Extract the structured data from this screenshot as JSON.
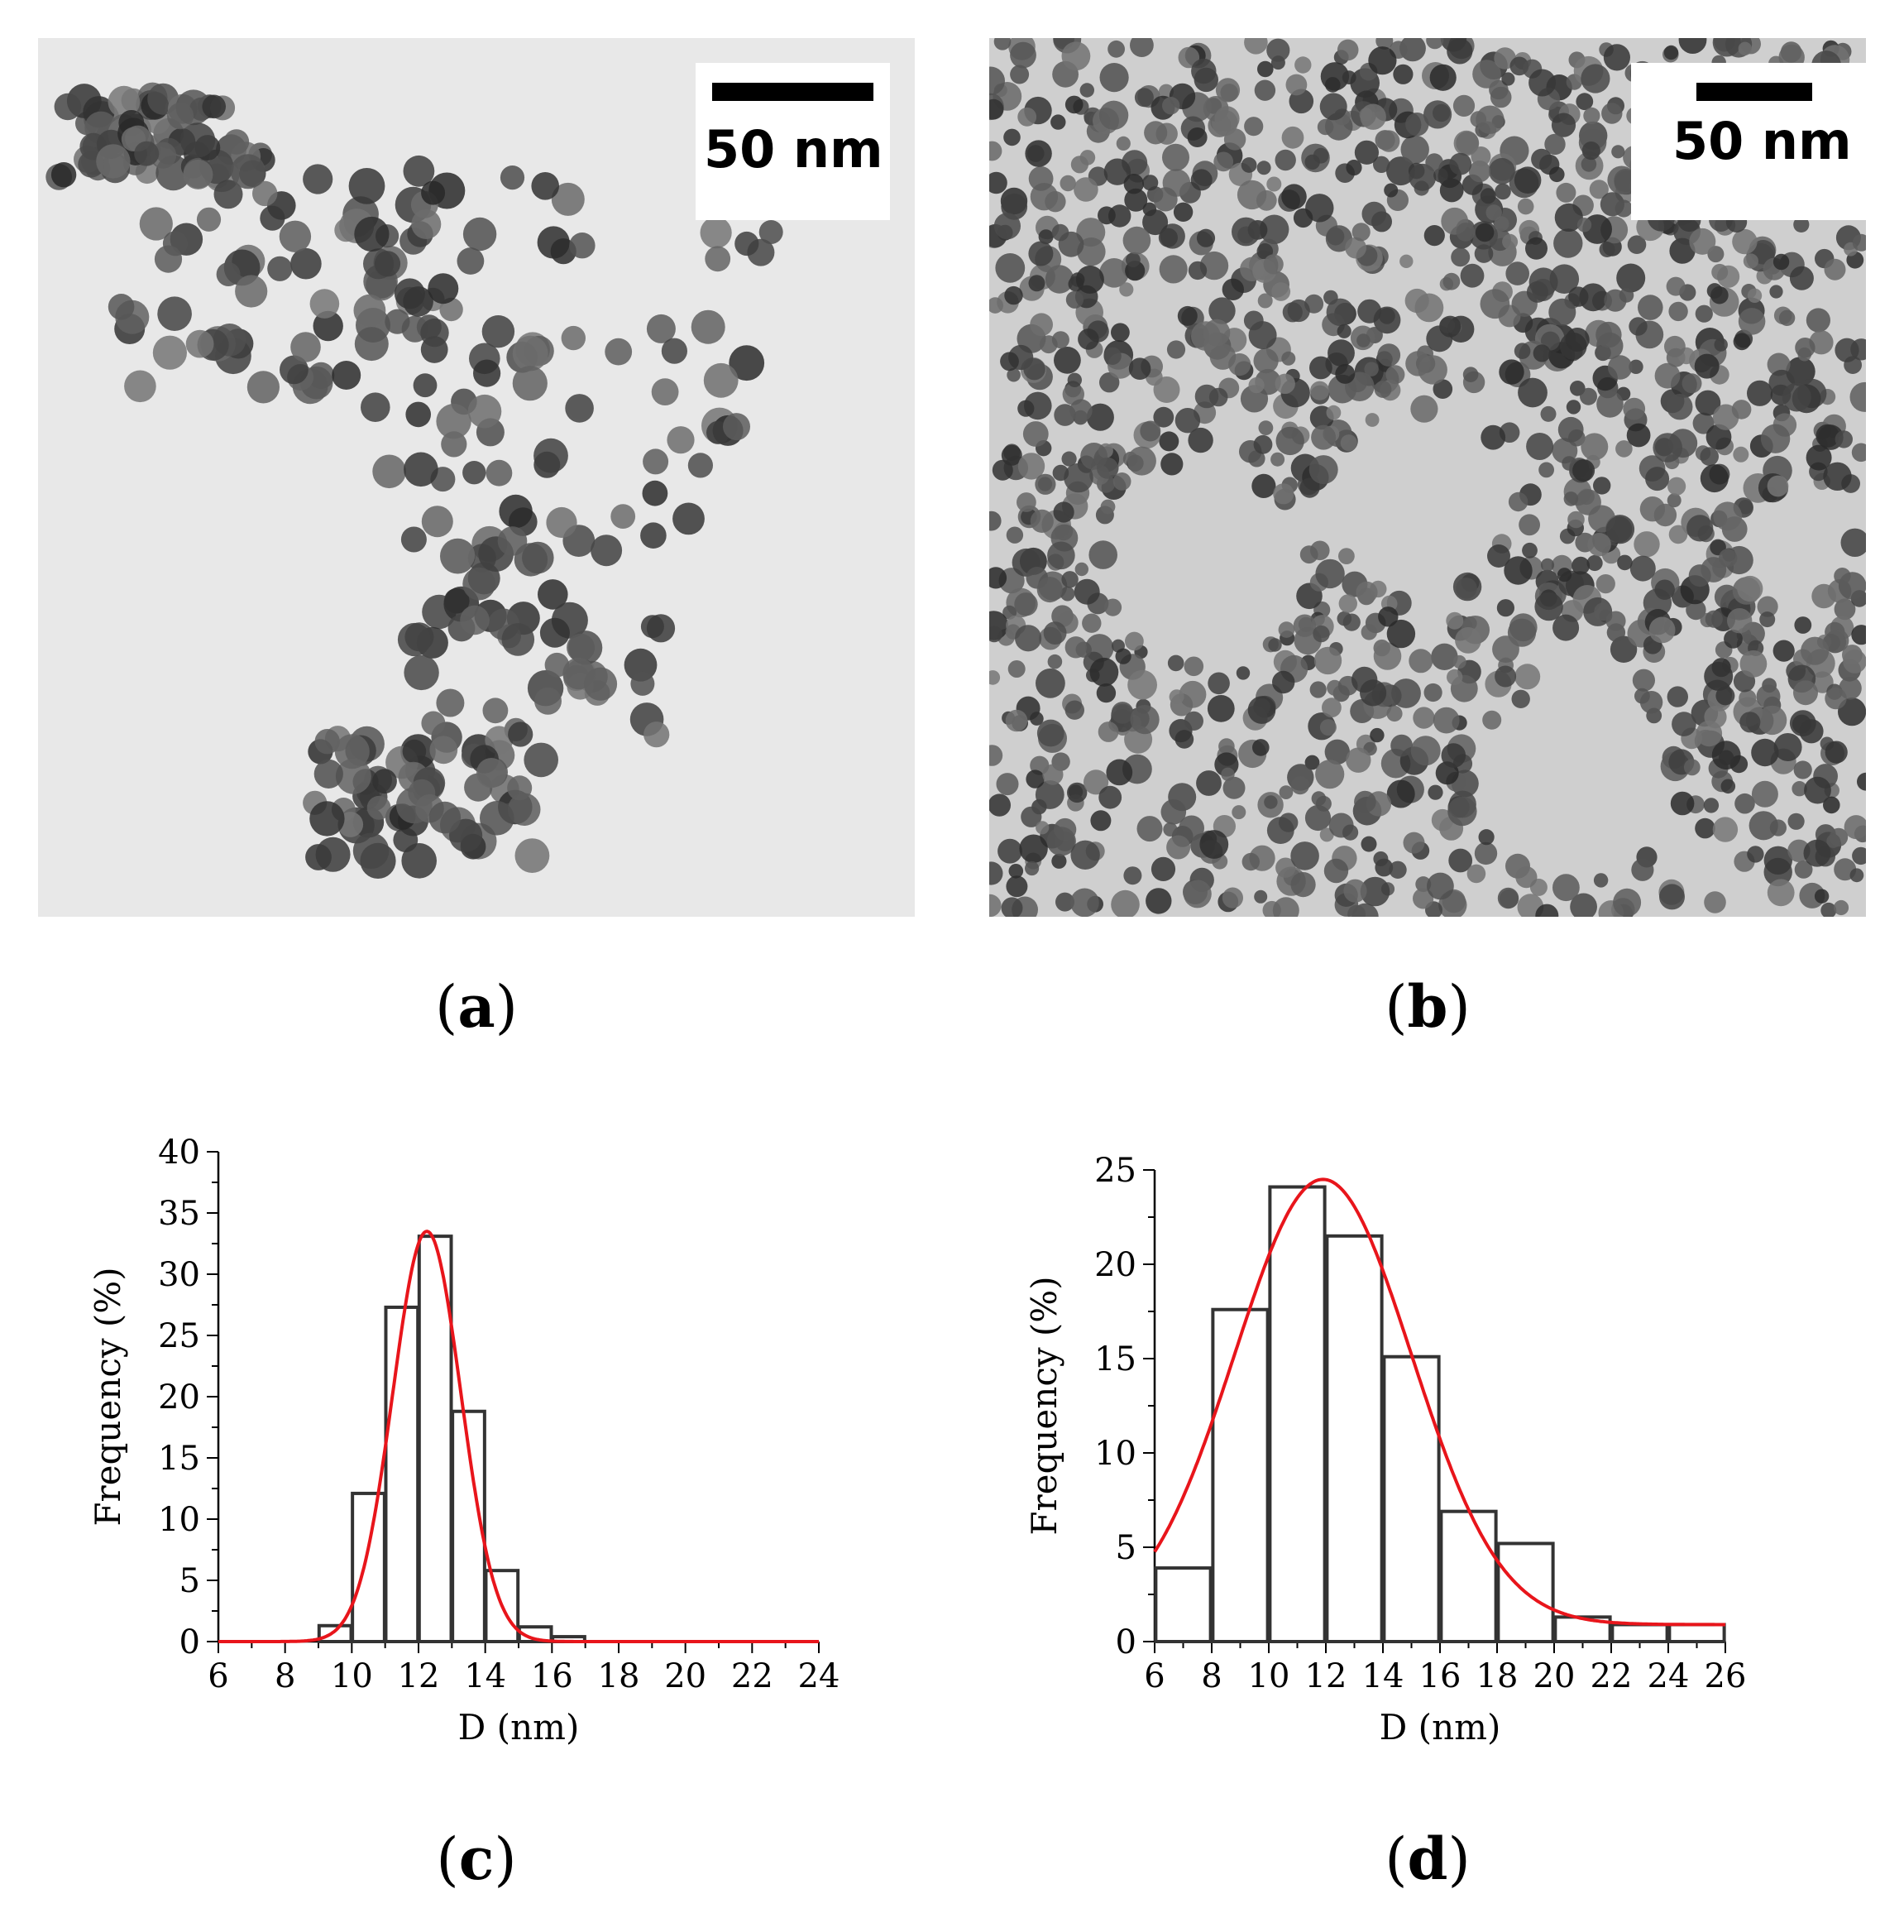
{
  "panels": {
    "a": {
      "label": "a",
      "scale_text": "50 nm"
    },
    "b": {
      "label": "b",
      "scale_text": "50 nm"
    },
    "c": {
      "label": "c"
    },
    "d": {
      "label": "d"
    }
  },
  "colors": {
    "bar_edge": "#333333",
    "fit_curve": "#e8151b"
  },
  "chart_data": [
    {
      "panel": "c",
      "type": "bar",
      "xlabel": "D (nm)",
      "ylabel": "Frequency (%)",
      "xlim": [
        6,
        24
      ],
      "ylim": [
        0,
        40
      ],
      "xticks": [
        6,
        8,
        10,
        12,
        14,
        16,
        18,
        20,
        22,
        24
      ],
      "yticks": [
        0,
        5,
        10,
        15,
        20,
        25,
        30,
        35,
        40
      ],
      "bin_width": 1,
      "bin_centers": [
        9.5,
        10.5,
        11.5,
        12.5,
        13.5,
        14.5,
        15.5,
        16.5
      ],
      "values": [
        1.3,
        12.1,
        27.3,
        33.1,
        18.8,
        5.8,
        1.2,
        0.4
      ],
      "fit": {
        "type": "gaussian",
        "center": 12.25,
        "sigma": 1.02,
        "amplitude": 33.5,
        "baseline": 0
      },
      "grid": false
    },
    {
      "panel": "d",
      "type": "bar",
      "xlabel": "D (nm)",
      "ylabel": "Frequency (%)",
      "xlim": [
        6,
        26
      ],
      "ylim": [
        0,
        25
      ],
      "xticks": [
        6,
        8,
        10,
        12,
        14,
        16,
        18,
        20,
        22,
        24,
        26
      ],
      "yticks": [
        0,
        5,
        10,
        15,
        20,
        25
      ],
      "bin_width": 2,
      "bin_centers": [
        7,
        9,
        11,
        13,
        15,
        17,
        19,
        21,
        23,
        25
      ],
      "values": [
        3.9,
        17.6,
        24.1,
        21.5,
        15.1,
        6.9,
        5.2,
        1.3,
        0.9,
        0.9
      ],
      "fit": {
        "type": "gaussian",
        "center": 11.9,
        "sigma": 3.1,
        "amplitude": 23.6,
        "baseline": 0.9
      },
      "grid": false
    }
  ]
}
